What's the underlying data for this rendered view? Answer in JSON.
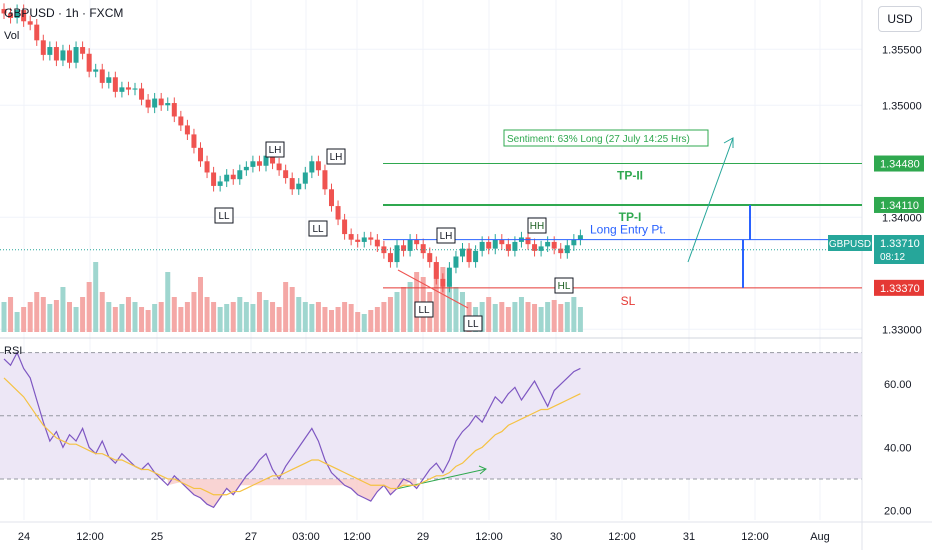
{
  "header": {
    "symbol_line": "GBPUSD · 1h · FXCM",
    "volume_label": "Vol",
    "currency_button": "USD",
    "rsi_label": "RSI"
  },
  "colors": {
    "up": "#26a69a",
    "down": "#ef5350",
    "up_vol": "#9fd6cf",
    "down_vol": "#f4a8a6",
    "tp": "#2fa84f",
    "entry": "#2962ff",
    "sl": "#e53935",
    "rsi_line": "#7e57c2",
    "rsi_ma": "#f5c242",
    "rsi_band": "#ede7f6"
  },
  "chart_data": [
    {
      "type": "candlestick",
      "y_ticks": [
        "1.35500",
        "1.35000",
        "1.34000",
        "1.33000"
      ],
      "ylim": [
        1.3294,
        1.3594
      ],
      "x_ticks": [
        "24",
        "12:00",
        "25",
        "27",
        "03:00",
        "12:00",
        "29",
        "12:00",
        "30",
        "12:00",
        "31",
        "12:00",
        "Aug"
      ],
      "close_path": [
        1.3582,
        1.3578,
        1.3585,
        1.3575,
        1.3572,
        1.3558,
        1.3545,
        1.3552,
        1.354,
        1.3549,
        1.3538,
        1.3552,
        1.3546,
        1.353,
        1.3532,
        1.352,
        1.3525,
        1.3512,
        1.3516,
        1.3514,
        1.3515,
        1.3505,
        1.3498,
        1.3506,
        1.35,
        1.3502,
        1.349,
        1.3482,
        1.3474,
        1.3462,
        1.345,
        1.344,
        1.3428,
        1.3432,
        1.3438,
        1.3434,
        1.3442,
        1.3445,
        1.345,
        1.3446,
        1.3455,
        1.3448,
        1.3442,
        1.3435,
        1.3425,
        1.343,
        1.344,
        1.345,
        1.3442,
        1.3425,
        1.341,
        1.3398,
        1.3385,
        1.338,
        1.3378,
        1.3382,
        1.338,
        1.3374,
        1.3368,
        1.336,
        1.3375,
        1.337,
        1.338,
        1.3376,
        1.3368,
        1.336,
        1.3345,
        1.3338,
        1.3355,
        1.3365,
        1.3372,
        1.336,
        1.337,
        1.3378,
        1.3372,
        1.338,
        1.3376,
        1.337,
        1.3378,
        1.3382,
        1.3376,
        1.337,
        1.3374,
        1.3378,
        1.3372,
        1.3368,
        1.3375,
        1.338,
        1.3384
      ],
      "volume": [
        0.3,
        0.35,
        0.2,
        0.25,
        0.3,
        0.4,
        0.35,
        0.28,
        0.32,
        0.45,
        0.3,
        0.25,
        0.35,
        0.5,
        0.7,
        0.4,
        0.3,
        0.25,
        0.28,
        0.35,
        0.3,
        0.25,
        0.22,
        0.28,
        0.3,
        0.6,
        0.35,
        0.25,
        0.3,
        0.4,
        0.55,
        0.35,
        0.3,
        0.25,
        0.28,
        0.3,
        0.35,
        0.3,
        0.28,
        0.4,
        0.32,
        0.3,
        0.25,
        0.5,
        0.45,
        0.35,
        0.3,
        0.28,
        0.3,
        0.25,
        0.22,
        0.25,
        0.3,
        0.28,
        0.2,
        0.18,
        0.22,
        0.25,
        0.3,
        0.35,
        0.4,
        0.45,
        0.5,
        0.6,
        0.55,
        0.4,
        0.7,
        0.65,
        0.5,
        0.45,
        0.4,
        0.3,
        0.25,
        0.3,
        0.35,
        0.28,
        0.3,
        0.25,
        0.3,
        0.35,
        0.3,
        0.28,
        0.25,
        0.3,
        0.32,
        0.28,
        0.3,
        0.35,
        0.25
      ],
      "levels": [
        {
          "name": "TP-II",
          "label": "TP-II",
          "price": 1.3448,
          "tag": "1.34480"
        },
        {
          "name": "TP-I",
          "label": "TP-I",
          "price": 1.3411,
          "tag": "1.34110"
        },
        {
          "name": "Long Entry Pt.",
          "label": "Long Entry Pt.",
          "price": 1.338
        },
        {
          "name": "SL",
          "label": "SL",
          "price": 1.3337,
          "tag": "1.33370"
        }
      ],
      "current_price": {
        "symbol": "GBPUSD",
        "price": "1.33710",
        "countdown": "08:12"
      },
      "annotations": {
        "sentiment": "Sentiment: 63% Long (27 July 14:25 Hrs)",
        "swing_labels": [
          "LH",
          "LH",
          "LL",
          "LL",
          "LH",
          "HH",
          "LL",
          "HL",
          "LL"
        ]
      }
    },
    {
      "type": "line",
      "title": "RSI",
      "y_ticks": [
        "60.00",
        "40.00",
        "20.00"
      ],
      "ylim": [
        17,
        74
      ],
      "band": [
        30,
        70
      ],
      "mid": 50,
      "rsi": [
        68,
        66,
        70,
        65,
        62,
        55,
        48,
        42,
        45,
        40,
        44,
        42,
        46,
        40,
        38,
        42,
        37,
        35,
        38,
        36,
        34,
        33,
        35,
        32,
        30,
        28,
        31,
        29,
        27,
        25,
        24,
        22,
        21,
        24,
        27,
        25,
        28,
        31,
        33,
        36,
        38,
        33,
        30,
        34,
        37,
        40,
        43,
        46,
        42,
        36,
        32,
        30,
        28,
        27,
        25,
        24,
        23,
        26,
        28,
        25,
        27,
        30,
        29,
        27,
        30,
        33,
        35,
        32,
        36,
        42,
        45,
        47,
        50,
        48,
        52,
        56,
        54,
        57,
        59,
        55,
        58,
        61,
        57,
        53,
        58,
        60,
        62,
        64,
        65
      ],
      "rsi_ma": [
        62,
        60,
        58,
        56,
        53,
        50,
        47,
        45,
        43,
        42,
        41,
        41,
        40,
        39,
        38,
        38,
        37,
        36,
        36,
        35,
        34,
        33,
        33,
        32,
        31,
        30,
        30,
        29,
        28,
        27,
        27,
        26,
        25,
        25,
        25,
        26,
        26,
        27,
        28,
        29,
        30,
        31,
        31,
        32,
        33,
        34,
        35,
        36,
        36,
        35,
        34,
        33,
        32,
        31,
        30,
        29,
        28,
        28,
        28,
        27,
        27,
        28,
        28,
        28,
        29,
        30,
        31,
        31,
        32,
        34,
        35,
        37,
        39,
        40,
        42,
        44,
        45,
        47,
        48,
        49,
        50,
        51,
        52,
        52,
        53,
        54,
        55,
        56,
        57
      ]
    }
  ]
}
